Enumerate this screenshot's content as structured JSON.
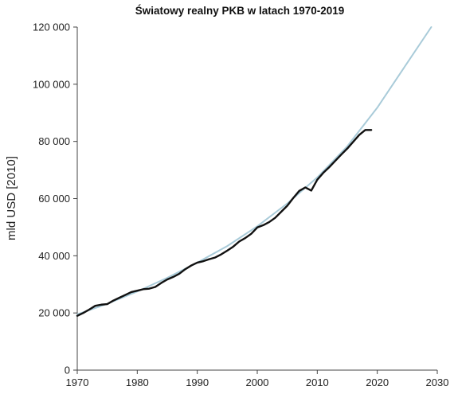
{
  "chart_data": {
    "type": "line",
    "title": "Światowy realny PKB w latach 1970-2019",
    "xlabel": "",
    "ylabel": "mld USD [2010]",
    "xlim": [
      1970,
      2030
    ],
    "ylim": [
      0,
      120000
    ],
    "x_ticks": [
      1970,
      1980,
      1990,
      2000,
      2010,
      2020,
      2030
    ],
    "y_ticks": [
      0,
      20000,
      40000,
      60000,
      80000,
      100000,
      120000
    ],
    "y_tick_labels": [
      "0",
      "20 000",
      "40 000",
      "60 000",
      "80 000",
      "100 000",
      "120 000"
    ],
    "grid": false,
    "legend": "none",
    "series": [
      {
        "color": "#a9cbd9",
        "x": [
          1970,
          1975,
          1980,
          1985,
          1990,
          1995,
          2000,
          2005,
          2010,
          2015,
          2020,
          2025,
          2029
        ],
        "values": [
          19500,
          23200,
          27500,
          32300,
          37600,
          43400,
          50300,
          58300,
          67400,
          78300,
          91800,
          107500,
          120000
        ]
      },
      {
        "color": "#111111",
        "x": [
          1970,
          1971,
          1972,
          1973,
          1974,
          1975,
          1976,
          1977,
          1978,
          1979,
          1980,
          1981,
          1982,
          1983,
          1984,
          1985,
          1986,
          1987,
          1988,
          1989,
          1990,
          1991,
          1992,
          1993,
          1994,
          1995,
          1996,
          1997,
          1998,
          1999,
          2000,
          2001,
          2002,
          2003,
          2004,
          2005,
          2006,
          2007,
          2008,
          2009,
          2010,
          2011,
          2012,
          2013,
          2014,
          2015,
          2016,
          2017,
          2018,
          2019
        ],
        "values": [
          19000,
          20000,
          21200,
          22500,
          22900,
          23100,
          24300,
          25300,
          26300,
          27300,
          27800,
          28300,
          28500,
          29100,
          30500,
          31700,
          32600,
          33700,
          35300,
          36600,
          37600,
          38100,
          38800,
          39400,
          40500,
          41800,
          43200,
          45000,
          46200,
          47700,
          49900,
          50700,
          51800,
          53300,
          55400,
          57500,
          60200,
          62700,
          63900,
          62800,
          66600,
          69000,
          71000,
          73200,
          75400,
          77500,
          79900,
          82300,
          84000,
          84000
        ]
      }
    ]
  }
}
